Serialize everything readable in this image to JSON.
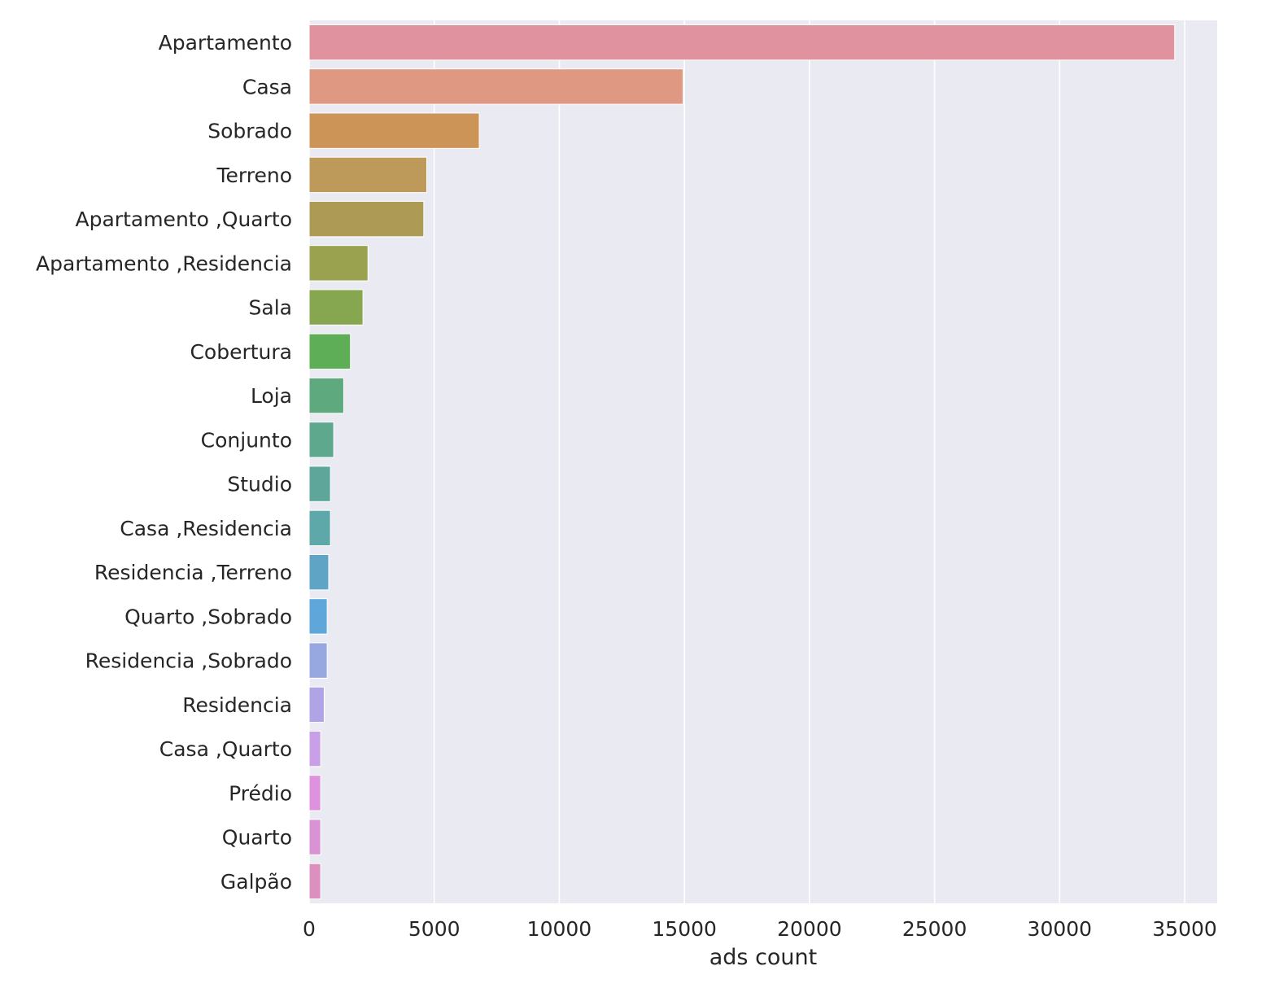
{
  "chart_data": {
    "type": "bar",
    "orientation": "horizontal",
    "categories": [
      "Apartamento",
      "Casa",
      "Sobrado",
      "Terreno",
      "Apartamento ,Quarto",
      "Apartamento ,Residencia",
      "Sala",
      "Cobertura",
      "Loja",
      "Conjunto",
      "Studio",
      "Casa ,Residencia",
      "Residencia ,Terreno",
      "Quarto ,Sobrado",
      "Residencia ,Sobrado",
      "Residencia",
      "Casa ,Quarto",
      "Prédio",
      "Quarto",
      "Galpão"
    ],
    "values": [
      34600,
      14950,
      6800,
      4700,
      4580,
      2350,
      2150,
      1650,
      1380,
      980,
      850,
      850,
      780,
      720,
      720,
      600,
      460,
      460,
      460,
      460
    ],
    "colors": [
      "#e0939f",
      "#df9983",
      "#cd9457",
      "#be9a5a",
      "#ad9b55",
      "#9ba24f",
      "#86a74f",
      "#5ead57",
      "#5ea97e",
      "#5ea88e",
      "#5ea69a",
      "#5fa8a9",
      "#5fa4c5",
      "#5fa6da",
      "#97a8e0",
      "#b0a3e6",
      "#c99fe8",
      "#de91df",
      "#d992d3",
      "#db90c0"
    ],
    "title": "",
    "xlabel": "ads count",
    "ylabel": "",
    "xlim": [
      0,
      36300
    ],
    "xticks": [
      0,
      5000,
      10000,
      15000,
      20000,
      25000,
      30000,
      35000
    ],
    "xtick_labels": [
      "0",
      "5000",
      "10000",
      "15000",
      "20000",
      "25000",
      "30000",
      "35000"
    ],
    "grid": true,
    "style": {
      "plot_background": "#eaeaf2",
      "grid_color": "#ffffff",
      "text_color": "#262626"
    }
  }
}
